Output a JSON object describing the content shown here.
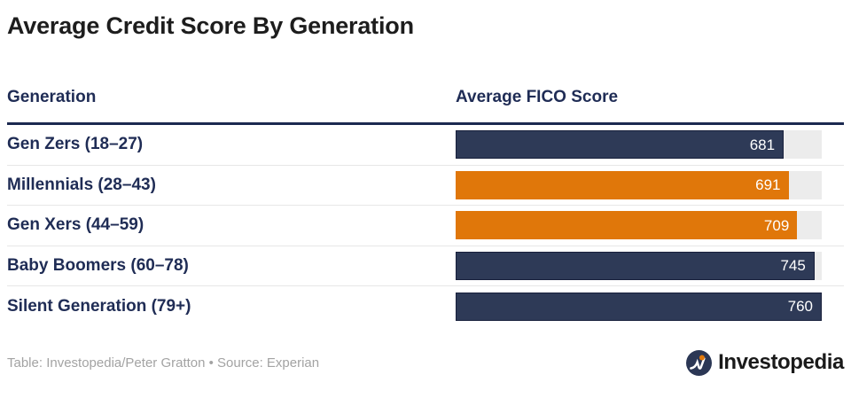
{
  "title": "Average Credit Score By Generation",
  "table": {
    "col1_header": "Generation",
    "col2_header": "Average FICO Score",
    "max_value": 760,
    "rows": [
      {
        "label": "Gen Zers (18–27)",
        "value": 681,
        "color": "navy"
      },
      {
        "label": "Millennials (28–43)",
        "value": 691,
        "color": "orange"
      },
      {
        "label": "Gen Xers (44–59)",
        "value": 709,
        "color": "orange"
      },
      {
        "label": "Baby Boomers (60–78)",
        "value": 745,
        "color": "navy"
      },
      {
        "label": "Silent Generation (79+)",
        "value": 760,
        "color": "navy"
      }
    ]
  },
  "footer": {
    "credit": "Table: Investopedia/Peter Gratton • Source: Experian",
    "logo_text": "Investopedia"
  },
  "colors": {
    "navy": "#2e3a57",
    "navy_border": "#18203c",
    "orange": "#e0770a",
    "navyText": "#1f2c55",
    "dividerNavy": "#1c2950",
    "title": "#1d1d1d",
    "track": "#ececec",
    "separator": "#e7e7e7",
    "footerGray": "#a3a3a3",
    "logo_circle": "#2b3755",
    "logo_dot": "#e0770a"
  },
  "chart_data": {
    "type": "bar",
    "orientation": "horizontal",
    "title": "Average Credit Score By Generation",
    "categories": [
      "Gen Zers (18–27)",
      "Millennials (28–43)",
      "Gen Xers (44–59)",
      "Baby Boomers (60–78)",
      "Silent Generation (79+)"
    ],
    "values": [
      681,
      691,
      709,
      745,
      760
    ],
    "bar_colors": [
      "#2e3a57",
      "#e0770a",
      "#e0770a",
      "#2e3a57",
      "#2e3a57"
    ],
    "xlabel": "Average FICO Score",
    "ylabel": "Generation",
    "xlim": [
      0,
      760
    ],
    "data_labels": true,
    "grid": false,
    "legend": false,
    "source": "Table: Investopedia/Peter Gratton • Source: Experian"
  }
}
